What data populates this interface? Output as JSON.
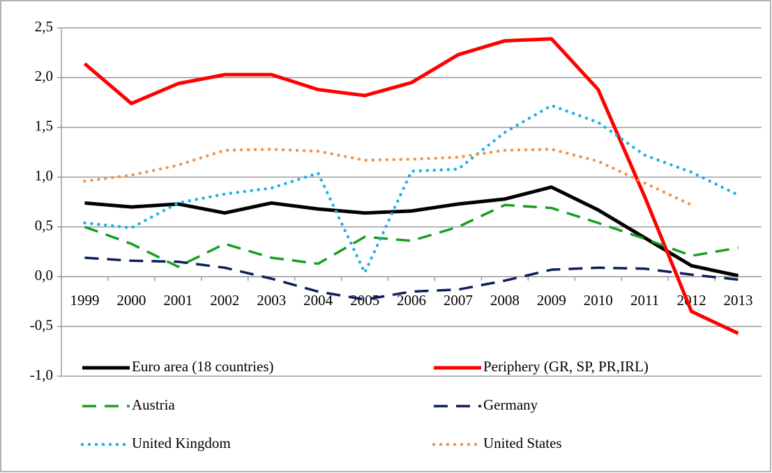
{
  "chart_data": {
    "type": "line",
    "categories": [
      "1999",
      "2000",
      "2001",
      "2002",
      "2003",
      "2004",
      "2005",
      "2006",
      "2007",
      "2008",
      "2009",
      "2010",
      "2011",
      "2012",
      "2013"
    ],
    "ylim": [
      -1.0,
      2.5
    ],
    "yticks": [
      {
        "value": -1.0,
        "label": "-1,0"
      },
      {
        "value": -0.5,
        "label": "-0,5"
      },
      {
        "value": 0.0,
        "label": "0,0"
      },
      {
        "value": 0.5,
        "label": "0,5"
      },
      {
        "value": 1.0,
        "label": "1,0"
      },
      {
        "value": 1.5,
        "label": "1,5"
      },
      {
        "value": 2.0,
        "label": "2,0"
      },
      {
        "value": 2.5,
        "label": "2,5"
      }
    ],
    "grid": true,
    "legend": "bottom",
    "series": [
      {
        "name": "Euro area (18 countries)",
        "color": "#000000",
        "style": "solid",
        "values": [
          0.74,
          0.7,
          0.73,
          0.64,
          0.74,
          0.68,
          0.64,
          0.66,
          0.73,
          0.78,
          0.9,
          0.67,
          0.39,
          0.11,
          0.01
        ]
      },
      {
        "name": "Periphery (GR, SP, PR,IRL)",
        "color": "#ff0000",
        "style": "solid",
        "values": [
          2.14,
          1.74,
          1.94,
          2.03,
          2.03,
          1.88,
          1.82,
          1.95,
          2.23,
          2.37,
          2.39,
          1.88,
          0.8,
          -0.35,
          -0.57
        ]
      },
      {
        "name": "Austria",
        "color": "#16a01e",
        "style": "dashed",
        "values": [
          0.5,
          0.33,
          0.1,
          0.33,
          0.19,
          0.13,
          0.4,
          0.36,
          0.5,
          0.72,
          0.69,
          0.54,
          0.38,
          0.21,
          0.29
        ]
      },
      {
        "name": "Germany",
        "color": "#0c1f5a",
        "style": "dashed",
        "values": [
          0.19,
          0.16,
          0.15,
          0.09,
          -0.02,
          -0.15,
          -0.23,
          -0.15,
          -0.13,
          -0.04,
          0.07,
          0.09,
          0.08,
          0.02,
          -0.03
        ]
      },
      {
        "name": "United Kingdom",
        "color": "#1cb0e6",
        "style": "dotted",
        "values": [
          0.54,
          0.49,
          0.74,
          0.83,
          0.89,
          1.04,
          0.04,
          1.06,
          1.08,
          1.45,
          1.72,
          1.55,
          1.22,
          1.05,
          0.82
        ]
      },
      {
        "name": "United States",
        "color": "#f0944d",
        "style": "dotted",
        "values": [
          0.96,
          1.02,
          1.12,
          1.27,
          1.28,
          1.26,
          1.17,
          1.18,
          1.2,
          1.27,
          1.28,
          1.16,
          0.94,
          0.72,
          null
        ]
      }
    ]
  }
}
